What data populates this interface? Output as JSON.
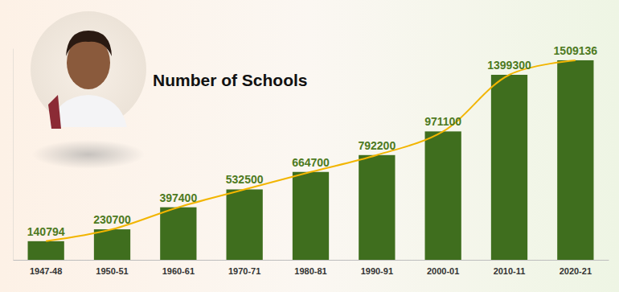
{
  "chart_data": {
    "type": "bar",
    "title": "Number of Schools",
    "categories": [
      "1947-48",
      "1950-51",
      "1960-61",
      "1970-71",
      "1980-81",
      "1990-91",
      "2000-01",
      "2010-11",
      "2020-21"
    ],
    "series": [
      {
        "type": "bar",
        "color": "#3f6e1e",
        "values": [
          140794,
          230700,
          397400,
          532500,
          664700,
          792200,
          971100,
          1399300,
          1509136
        ]
      },
      {
        "type": "line",
        "color": "#f2b500",
        "values": [
          140794,
          230700,
          397400,
          532500,
          664700,
          792200,
          971100,
          1399300,
          1509136
        ]
      }
    ],
    "ylim": [
      0,
      1600000
    ],
    "data_labels": true,
    "tick_labels": "x"
  }
}
